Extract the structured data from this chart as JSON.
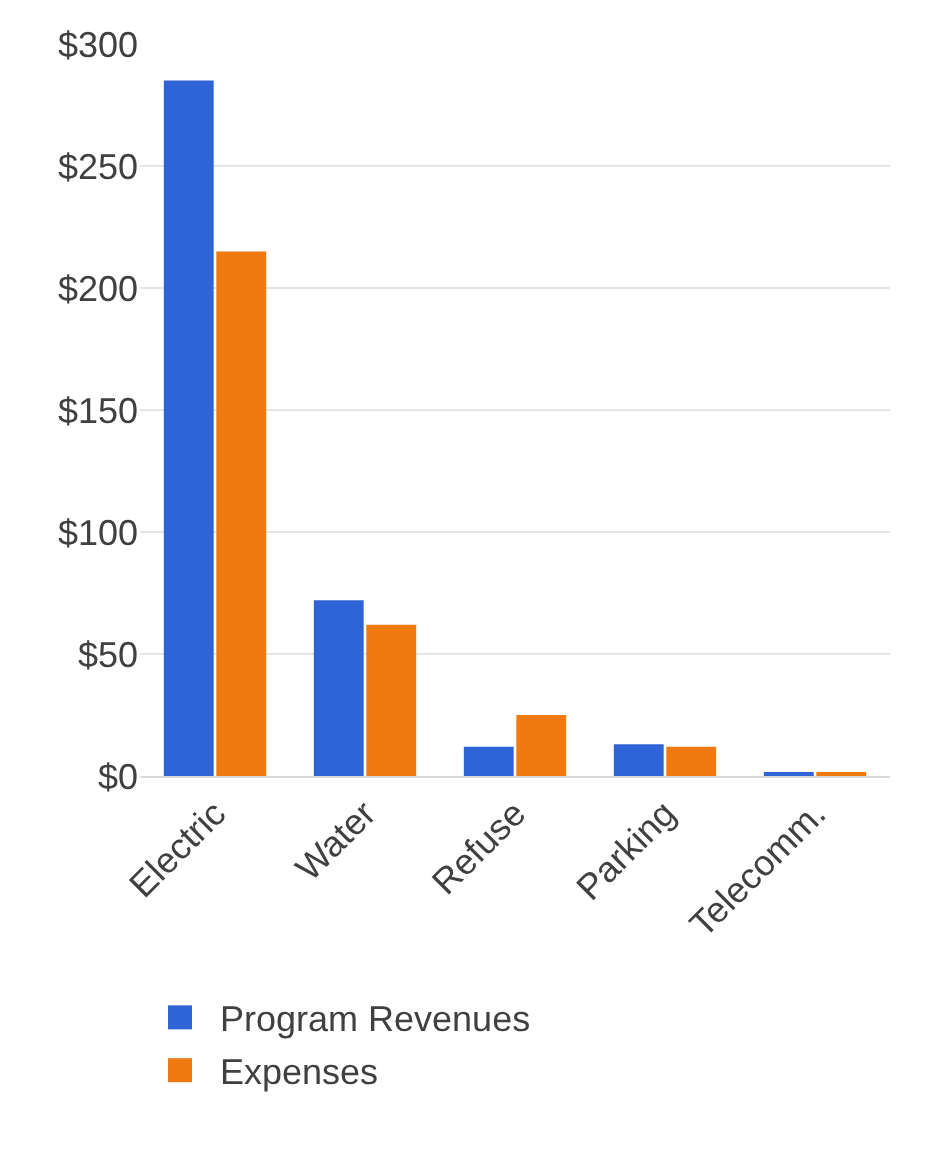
{
  "chart_data": {
    "type": "bar",
    "categories": [
      "Electric",
      "Water",
      "Refuse",
      "Parking",
      "Telecomm."
    ],
    "series": [
      {
        "name": "Program Revenues",
        "color": "#2f64d6",
        "values": [
          285,
          72,
          12,
          13,
          1
        ]
      },
      {
        "name": "Expenses",
        "color": "#f07a10",
        "values": [
          215,
          62,
          25,
          12,
          1
        ]
      }
    ],
    "ylim": [
      0,
      300
    ],
    "yticks": [
      {
        "value": 0,
        "label": "$0"
      },
      {
        "value": 50,
        "label": "$50"
      },
      {
        "value": 100,
        "label": "$100"
      },
      {
        "value": 150,
        "label": "$150"
      },
      {
        "value": 200,
        "label": "$200"
      },
      {
        "value": 250,
        "label": "$250"
      },
      {
        "value": 300,
        "label": "$300"
      }
    ],
    "grid": "y",
    "legend": "bottom"
  }
}
